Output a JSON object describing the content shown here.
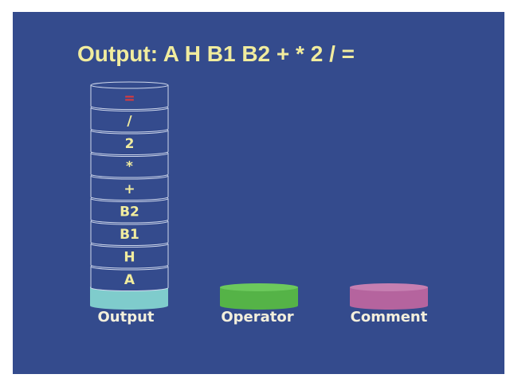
{
  "title": "Output: A H B1 B2 + * 2 / =",
  "stack": {
    "items": [
      {
        "text": "A",
        "color": "#f1ec9e"
      },
      {
        "text": "H",
        "color": "#f1ec9e"
      },
      {
        "text": "B1",
        "color": "#f1ec9e"
      },
      {
        "text": "B2",
        "color": "#f1ec9e"
      },
      {
        "text": "+",
        "color": "#f1ec9e"
      },
      {
        "text": "*",
        "color": "#f1ec9e"
      },
      {
        "text": "2",
        "color": "#f1ec9e"
      },
      {
        "text": "/",
        "color": "#f1ec9e"
      },
      {
        "text": "=",
        "color": "#e03a3a"
      }
    ]
  },
  "bases": [
    {
      "label": "Output",
      "color": "#7fcccc",
      "top_color": "#9fdede"
    },
    {
      "label": "Operator",
      "color": "#55b347",
      "top_color": "#6cc95c"
    },
    {
      "label": "Comment",
      "color": "#b5649e",
      "top_color": "#c67fb1"
    }
  ],
  "colors": {
    "background": "#344b8d",
    "title": "#f1ec9e",
    "disk_outline": "#cfd8ec"
  }
}
